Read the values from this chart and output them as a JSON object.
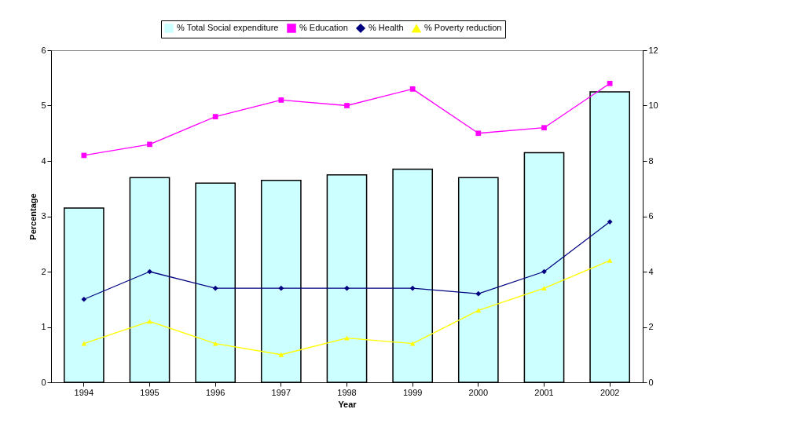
{
  "chart_data": {
    "type": "bar",
    "xlabel": "Year",
    "ylabel": "Percentage",
    "categories": [
      "1994",
      "1995",
      "1996",
      "1997",
      "1998",
      "1999",
      "2000",
      "2001",
      "2002"
    ],
    "series": [
      {
        "name": "% Total Social expenditure",
        "axis": "y2",
        "color": "#ccffff",
        "values": [
          6.3,
          7.4,
          7.2,
          7.3,
          7.5,
          7.7,
          7.4,
          8.3,
          10.5
        ]
      },
      {
        "name": "% Education",
        "type": "line",
        "marker": "square",
        "color": "#ff00ff",
        "values": [
          4.1,
          4.3,
          4.8,
          5.1,
          5.0,
          5.3,
          4.5,
          4.6,
          5.4
        ]
      },
      {
        "name": "% Health",
        "type": "line",
        "marker": "diamond",
        "color": "#000080",
        "values": [
          1.5,
          2.0,
          1.7,
          1.7,
          1.7,
          1.7,
          1.6,
          2.0,
          2.9
        ]
      },
      {
        "name": "% Poverty reduction",
        "type": "line",
        "marker": "triangle",
        "color": "#ffff00",
        "values": [
          0.7,
          1.1,
          0.7,
          0.5,
          0.8,
          0.7,
          1.3,
          1.7,
          2.2
        ]
      }
    ],
    "ylim": [
      0,
      6
    ],
    "yticks": [
      0,
      1,
      2,
      3,
      4,
      5,
      6
    ],
    "y2lim": [
      0,
      12
    ],
    "y2ticks": [
      0,
      2,
      4,
      6,
      8,
      10,
      12
    ],
    "legend": "top",
    "grid": false
  }
}
